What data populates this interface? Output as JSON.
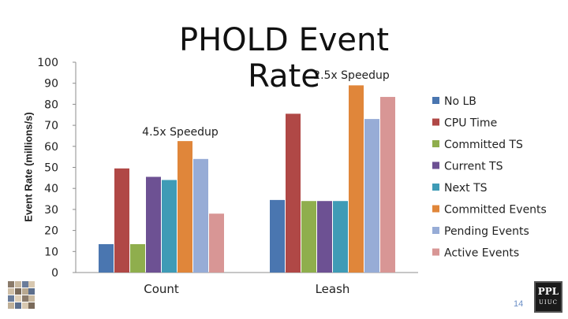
{
  "page": {
    "number": "14"
  },
  "logo": {
    "top": "PPL",
    "bottom": "UIUC"
  },
  "chart_data": {
    "type": "bar",
    "title": "PHOLD Event Rate",
    "ylabel": "Event Rate (millions/s)",
    "xlabel": "",
    "ylim": [
      0,
      100
    ],
    "yticks": [
      0,
      10,
      20,
      30,
      40,
      50,
      60,
      70,
      80,
      90,
      100
    ],
    "grid": false,
    "legend_position": "right",
    "categories": [
      "Count",
      "Leash"
    ],
    "series": [
      {
        "name": "No LB",
        "color": "#4a76b0",
        "values": [
          13.5,
          34.5
        ]
      },
      {
        "name": "CPU Time",
        "color": "#b04846",
        "values": [
          49.5,
          75.5
        ]
      },
      {
        "name": "Committed TS",
        "color": "#8fae4d",
        "values": [
          13.5,
          34
        ]
      },
      {
        "name": "Current TS",
        "color": "#6d5193",
        "values": [
          45.5,
          34
        ]
      },
      {
        "name": "Next TS",
        "color": "#3f9bb6",
        "values": [
          44,
          34
        ]
      },
      {
        "name": "Committed Events",
        "color": "#e0863a",
        "values": [
          62.5,
          89
        ]
      },
      {
        "name": "Pending Events",
        "color": "#97acd6",
        "values": [
          54,
          73
        ]
      },
      {
        "name": "Active Events",
        "color": "#d89695",
        "values": [
          28,
          83.5
        ]
      }
    ],
    "annotations": [
      {
        "text": "4.5x Speedup",
        "category": "Count",
        "value": 67
      },
      {
        "text": "2.5x Speedup",
        "category": "Leash",
        "value": 94
      }
    ]
  }
}
